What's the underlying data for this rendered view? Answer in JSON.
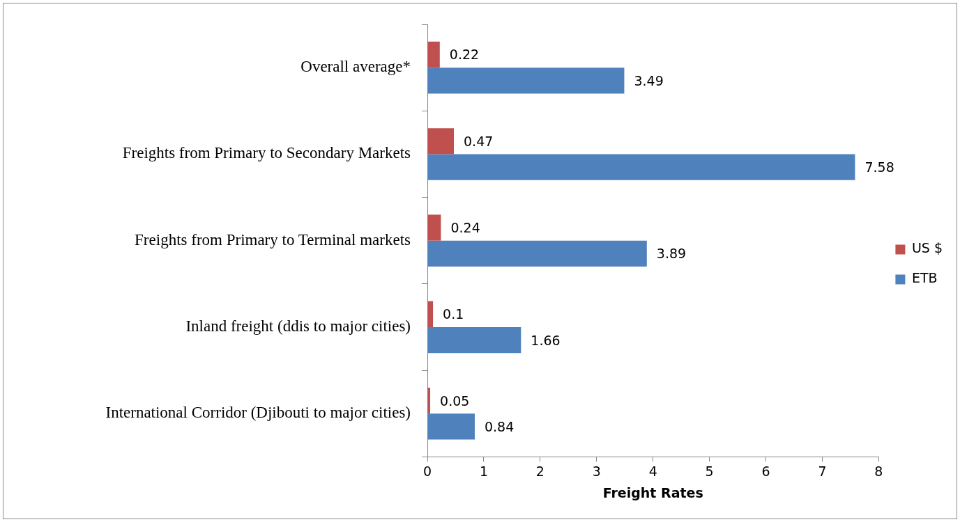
{
  "chart_data": {
    "type": "bar",
    "orientation": "horizontal",
    "xlabel": "Freight Rates",
    "categories": [
      "Overall average*",
      "Freights from Primary to Secondary Markets",
      "Freights from Primary to Terminal markets",
      "Inland freight (ddis to major cities)",
      "International Corridor (Djibouti to major cities)"
    ],
    "series": [
      {
        "name": "US $",
        "color": "#c0504d",
        "values": [
          0.22,
          0.47,
          0.24,
          0.1,
          0.05
        ]
      },
      {
        "name": "ETB",
        "color": "#4f81bd",
        "values": [
          3.49,
          7.58,
          3.89,
          1.66,
          0.84
        ]
      }
    ],
    "xlim": [
      0,
      8
    ],
    "xticks": [
      0,
      1,
      2,
      3,
      4,
      5,
      6,
      7,
      8
    ],
    "grid": false,
    "legend": "right",
    "data_labels": true
  }
}
